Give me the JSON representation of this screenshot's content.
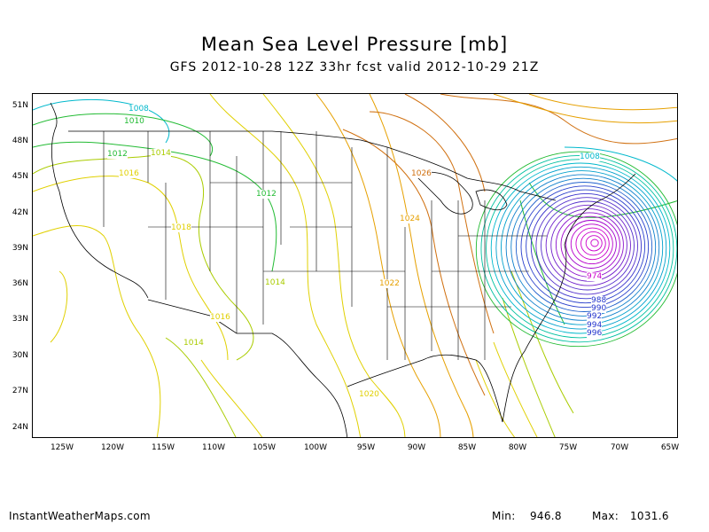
{
  "title": "Mean Sea Level Pressure [mb]",
  "subtitle": "GFS 2012-10-28 12Z 33hr fcst valid 2012-10-29 21Z",
  "lat_labels": [
    "51N",
    "48N",
    "45N",
    "42N",
    "39N",
    "36N",
    "33N",
    "30N",
    "27N",
    "24N"
  ],
  "lon_labels": [
    "125W",
    "120W",
    "115W",
    "110W",
    "105W",
    "100W",
    "95W",
    "90W",
    "85W",
    "80W",
    "75W",
    "70W",
    "65W"
  ],
  "contour_labels": [
    "1008",
    "1010",
    "1012",
    "1014",
    "1016",
    "1018",
    "1012",
    "1026",
    "1024",
    "1014",
    "1022",
    "1016",
    "1014",
    "1020",
    "1008",
    "974",
    "988",
    "990",
    "992",
    "994",
    "996"
  ],
  "footer": {
    "site": "InstantWeatherMaps.com",
    "min_label": "Min:",
    "min_value": "946.8",
    "max_label": "Max:",
    "max_value": "1031.6"
  },
  "colors": {
    "low_magenta": "#cc00cc",
    "blue": "#2233cc",
    "cyan": "#00b8cc",
    "green": "#22bb33",
    "yellowgreen": "#aacc00",
    "yellow": "#e0d000",
    "orange": "#e6a000",
    "darkorange": "#d07010",
    "map_lines": "#000000"
  }
}
